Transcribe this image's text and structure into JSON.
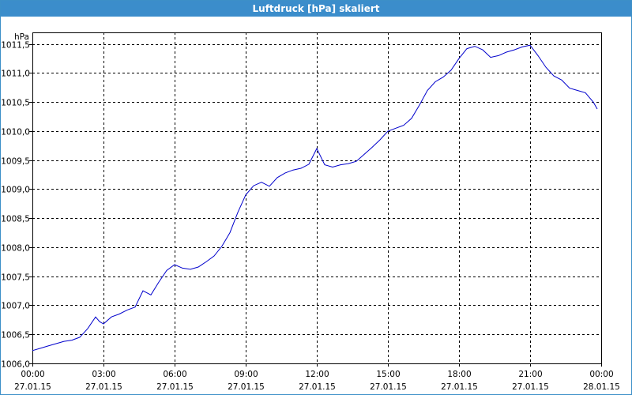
{
  "window": {
    "title": "Luftdruck [hPa] skaliert"
  },
  "chart_data": {
    "type": "line",
    "title": "Luftdruck [hPa] skaliert",
    "ylabel": "hPa",
    "xlabel": "",
    "ylim": [
      1006.0,
      1011.7
    ],
    "xlim": [
      "27.01.15 00:00",
      "28.01.15 00:00"
    ],
    "grid": true,
    "x_ticks": [
      {
        "time": "00:00",
        "date": "27.01.15"
      },
      {
        "time": "03:00",
        "date": "27.01.15"
      },
      {
        "time": "06:00",
        "date": "27.01.15"
      },
      {
        "time": "09:00",
        "date": "27.01.15"
      },
      {
        "time": "12:00",
        "date": "27.01.15"
      },
      {
        "time": "15:00",
        "date": "27.01.15"
      },
      {
        "time": "18:00",
        "date": "27.01.15"
      },
      {
        "time": "21:00",
        "date": "27.01.15"
      },
      {
        "time": "00:00",
        "date": "28.01.15"
      }
    ],
    "y_ticks": [
      "1006,0",
      "1006,5",
      "1007,0",
      "1007,5",
      "1008,0",
      "1008,5",
      "1009,0",
      "1009,5",
      "1010,0",
      "1010,5",
      "1011,0",
      "1011,5"
    ],
    "series": [
      {
        "color": "#0000cc",
        "x": [
          "00:00",
          "00:20",
          "00:40",
          "01:00",
          "01:20",
          "01:40",
          "02:00",
          "02:20",
          "02:40",
          "02:50",
          "03:00",
          "03:20",
          "03:40",
          "04:00",
          "04:20",
          "04:40",
          "05:00",
          "05:20",
          "05:40",
          "06:00",
          "06:20",
          "06:40",
          "07:00",
          "07:20",
          "07:40",
          "08:00",
          "08:20",
          "08:40",
          "09:00",
          "09:20",
          "09:40",
          "10:00",
          "10:20",
          "10:40",
          "11:00",
          "11:20",
          "11:40",
          "12:00",
          "12:20",
          "12:40",
          "13:00",
          "13:20",
          "13:40",
          "14:00",
          "14:20",
          "14:40",
          "15:00",
          "15:20",
          "15:40",
          "16:00",
          "16:20",
          "16:40",
          "17:00",
          "17:20",
          "17:40",
          "18:00",
          "18:20",
          "18:40",
          "19:00",
          "19:20",
          "19:40",
          "20:00",
          "20:20",
          "20:40",
          "21:00",
          "21:20",
          "21:40",
          "22:00",
          "22:20",
          "22:40",
          "23:00",
          "23:20",
          "23:40",
          "23:50"
        ],
        "y": [
          1006.22,
          1006.26,
          1006.3,
          1006.34,
          1006.38,
          1006.4,
          1006.45,
          1006.6,
          1006.8,
          1006.72,
          1006.68,
          1006.8,
          1006.85,
          1006.92,
          1006.97,
          1007.25,
          1007.18,
          1007.4,
          1007.6,
          1007.7,
          1007.64,
          1007.62,
          1007.66,
          1007.75,
          1007.85,
          1008.02,
          1008.25,
          1008.6,
          1008.9,
          1009.06,
          1009.12,
          1009.05,
          1009.2,
          1009.28,
          1009.33,
          1009.36,
          1009.43,
          1009.7,
          1009.42,
          1009.38,
          1009.42,
          1009.44,
          1009.48,
          1009.6,
          1009.72,
          1009.85,
          1010.0,
          1010.05,
          1010.1,
          1010.22,
          1010.45,
          1010.7,
          1010.85,
          1010.93,
          1011.05,
          1011.25,
          1011.42,
          1011.46,
          1011.4,
          1011.27,
          1011.3,
          1011.36,
          1011.4,
          1011.45,
          1011.48,
          1011.3,
          1011.1,
          1010.95,
          1010.88,
          1010.74,
          1010.7,
          1010.66,
          1010.5,
          1010.38
        ]
      }
    ]
  }
}
